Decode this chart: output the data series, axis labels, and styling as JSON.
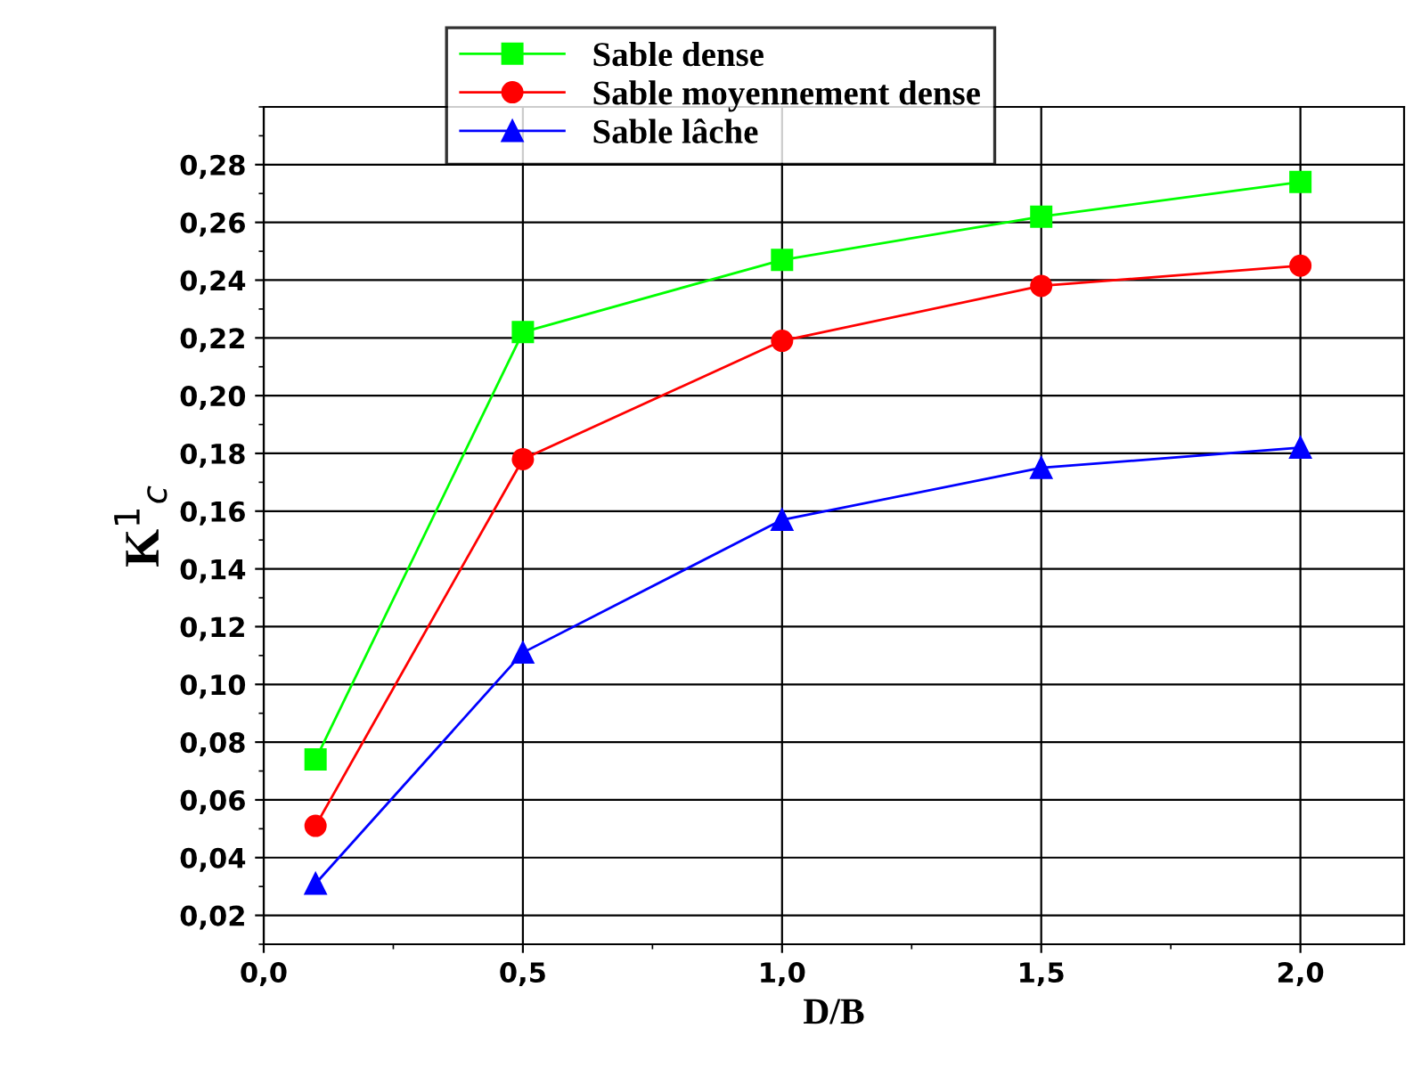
{
  "chart_data": {
    "type": "line",
    "xlabel": "D/B",
    "ylabel": "K$^{1}$$_{c}$",
    "x": [
      0.1,
      0.5,
      1.0,
      1.5,
      2.0
    ],
    "series": [
      {
        "name": "Sable dense",
        "color": "#00ff00",
        "marker": "square",
        "values": [
          0.074,
          0.222,
          0.247,
          0.262,
          0.274
        ]
      },
      {
        "name": "Sable moyennement dense",
        "color": "#ff0000",
        "marker": "circle",
        "values": [
          0.051,
          0.178,
          0.219,
          0.238,
          0.245
        ]
      },
      {
        "name": "Sable lâche",
        "color": "#0000ff",
        "marker": "triangle",
        "values": [
          0.031,
          0.111,
          0.157,
          0.175,
          0.182
        ]
      }
    ],
    "xlim": [
      0,
      2.2
    ],
    "ylim": [
      0.01,
      0.3
    ],
    "xticks": [
      {
        "value": 0,
        "label": "0,0"
      },
      {
        "value": 0.5,
        "label": "0,5"
      },
      {
        "value": 1.0,
        "label": "1,0"
      },
      {
        "value": 1.5,
        "label": "1,5"
      },
      {
        "value": 2.0,
        "label": "2,0"
      }
    ],
    "yticks": [
      {
        "value": 0.02,
        "label": "0,02"
      },
      {
        "value": 0.04,
        "label": "0,04"
      },
      {
        "value": 0.06,
        "label": "0,06"
      },
      {
        "value": 0.08,
        "label": "0,08"
      },
      {
        "value": 0.1,
        "label": "0,10"
      },
      {
        "value": 0.12,
        "label": "0,12"
      },
      {
        "value": 0.14,
        "label": "0,14"
      },
      {
        "value": 0.16,
        "label": "0,16"
      },
      {
        "value": 0.18,
        "label": "0,18"
      },
      {
        "value": 0.2,
        "label": "0,20"
      },
      {
        "value": 0.22,
        "label": "0,22"
      },
      {
        "value": 0.24,
        "label": "0,24"
      },
      {
        "value": 0.26,
        "label": "0,26"
      },
      {
        "value": 0.28,
        "label": "0,28"
      }
    ],
    "grid": true,
    "legend": "top",
    "line_style": "solid"
  }
}
